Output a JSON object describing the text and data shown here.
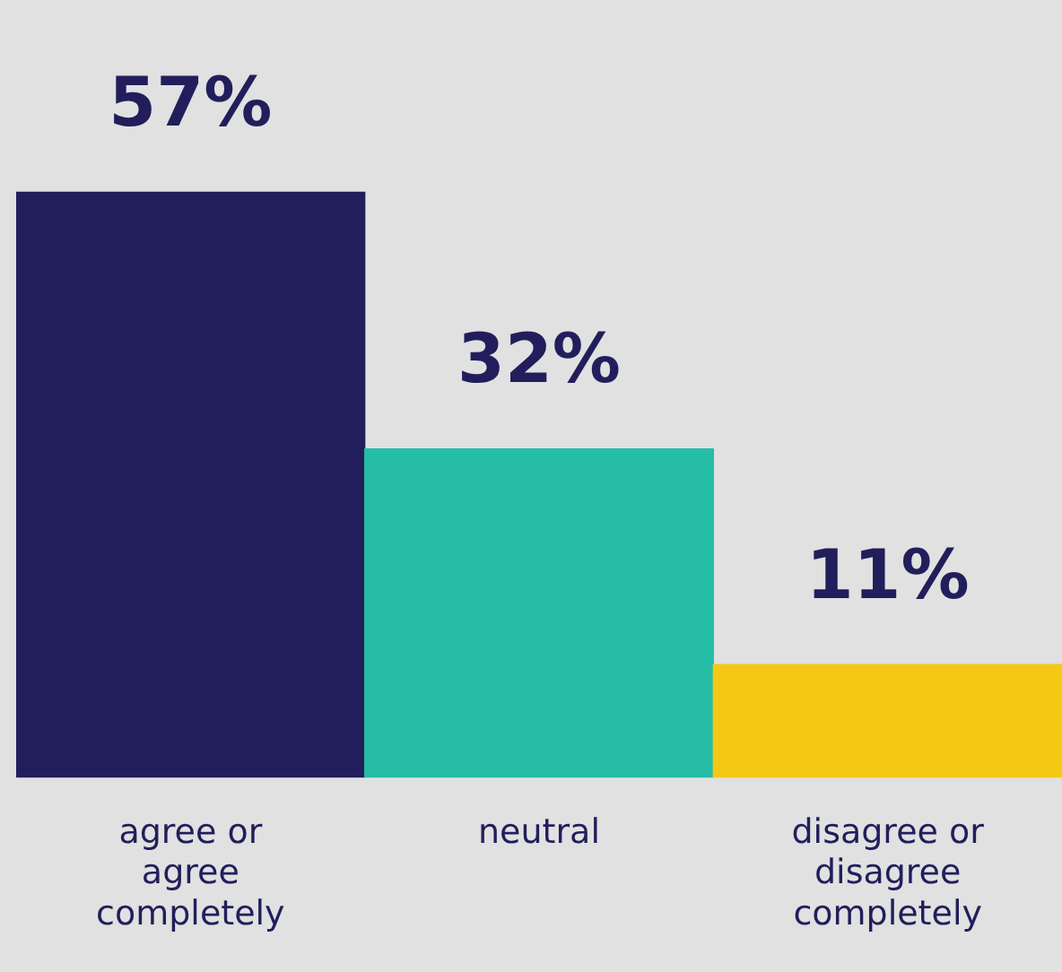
{
  "chart_data": {
    "type": "bar",
    "categories": [
      "agree or agree completely",
      "neutral",
      "disagree or disagree completely"
    ],
    "values": [
      57,
      32,
      11
    ],
    "colors": [
      "#221e5c",
      "#26bda6",
      "#f4c815"
    ],
    "value_labels": [
      "57%",
      "32%",
      "11%"
    ],
    "tick_labels": "x",
    "grid": false,
    "legend": false
  }
}
